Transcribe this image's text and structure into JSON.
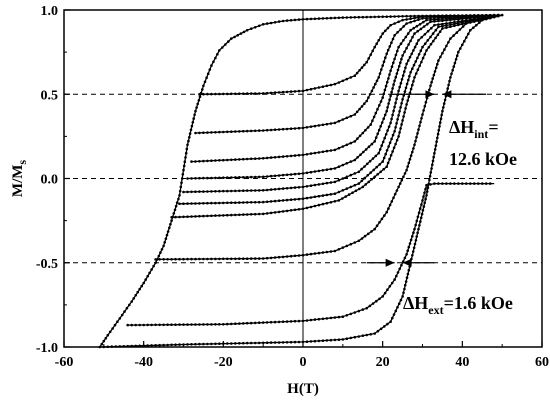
{
  "chart_data": {
    "type": "line",
    "title": "",
    "xlabel": "H(T)",
    "ylabel_main": "M/M",
    "ylabel_sub": "s",
    "xlim": [
      -60,
      60
    ],
    "ylim": [
      -1.0,
      1.0
    ],
    "x_ticks": [
      -60,
      -40,
      -20,
      0,
      20,
      40,
      60
    ],
    "x_tick_labels": [
      "-60",
      "-40",
      "-20",
      "0",
      "20",
      "40",
      "60"
    ],
    "y_ticks": [
      -1.0,
      -0.5,
      0.0,
      0.5,
      1.0
    ],
    "y_tick_labels": [
      "-1.0",
      "-0.5",
      "0.0",
      "0.5",
      "1.0"
    ],
    "grid": false,
    "reference_lines": {
      "horizontal_dashed": [
        -0.5,
        0.0,
        0.5
      ],
      "vertical_solid": [
        0
      ]
    },
    "annotations": {
      "int_main": "ΔH",
      "int_sub": "int",
      "int_tail": "=",
      "int_value": "12.6 kOe",
      "ext_main": "ΔH",
      "ext_sub": "ext",
      "ext_value": "=1.6 kOe"
    },
    "arrows": [
      {
        "y": 0.5,
        "x_from": 46,
        "x_to": 35
      },
      {
        "y": 0.5,
        "x_from": 22,
        "x_to": 33
      },
      {
        "y": -0.5,
        "x_from": 33,
        "x_to": 25
      },
      {
        "y": -0.5,
        "x_from": 16,
        "x_to": 23
      }
    ],
    "series": [
      {
        "points": [
          [
            50,
            0.97
          ],
          [
            30,
            0.965
          ],
          [
            10,
            0.955
          ],
          [
            0,
            0.945
          ],
          [
            -5,
            0.935
          ],
          [
            -10,
            0.915
          ],
          [
            -14,
            0.88
          ],
          [
            -18,
            0.83
          ],
          [
            -21,
            0.76
          ],
          [
            -23,
            0.67
          ],
          [
            -25,
            0.55
          ],
          [
            -27,
            0.4
          ],
          [
            -29,
            0.2
          ],
          [
            -30,
            0.05
          ],
          [
            -31,
            -0.1
          ],
          [
            -33,
            -0.25
          ],
          [
            -35,
            -0.4
          ],
          [
            -37,
            -0.5
          ],
          [
            -40,
            -0.62
          ],
          [
            -43,
            -0.73
          ],
          [
            -46,
            -0.83
          ],
          [
            -49,
            -0.93
          ],
          [
            -51,
            -1.0
          ]
        ]
      },
      {
        "points": [
          [
            -51,
            -1.0
          ],
          [
            -30,
            -0.985
          ],
          [
            -10,
            -0.975
          ],
          [
            0,
            -0.97
          ],
          [
            10,
            -0.955
          ],
          [
            18,
            -0.92
          ],
          [
            22,
            -0.85
          ],
          [
            25,
            -0.7
          ],
          [
            27,
            -0.5
          ],
          [
            29,
            -0.3
          ],
          [
            31,
            -0.1
          ],
          [
            33,
            0.15
          ],
          [
            35,
            0.4
          ],
          [
            37,
            0.6
          ],
          [
            39,
            0.75
          ],
          [
            42,
            0.88
          ],
          [
            45,
            0.94
          ],
          [
            50,
            0.97
          ]
        ]
      },
      {
        "points": [
          [
            -26,
            0.5
          ],
          [
            -10,
            0.505
          ],
          [
            0,
            0.52
          ],
          [
            8,
            0.56
          ],
          [
            13,
            0.61
          ],
          [
            16,
            0.69
          ],
          [
            18,
            0.78
          ],
          [
            20,
            0.86
          ],
          [
            22,
            0.91
          ],
          [
            25,
            0.94
          ],
          [
            30,
            0.96
          ],
          [
            50,
            0.97
          ]
        ]
      },
      {
        "points": [
          [
            -27,
            0.27
          ],
          [
            -10,
            0.285
          ],
          [
            0,
            0.3
          ],
          [
            8,
            0.33
          ],
          [
            13,
            0.38
          ],
          [
            16,
            0.46
          ],
          [
            19,
            0.6
          ],
          [
            21,
            0.74
          ],
          [
            23,
            0.85
          ],
          [
            26,
            0.92
          ],
          [
            30,
            0.95
          ],
          [
            50,
            0.97
          ]
        ]
      },
      {
        "points": [
          [
            -28,
            0.1
          ],
          [
            -10,
            0.12
          ],
          [
            0,
            0.14
          ],
          [
            8,
            0.17
          ],
          [
            13,
            0.22
          ],
          [
            17,
            0.32
          ],
          [
            20,
            0.48
          ],
          [
            22,
            0.64
          ],
          [
            24,
            0.78
          ],
          [
            27,
            0.88
          ],
          [
            31,
            0.94
          ],
          [
            50,
            0.97
          ]
        ]
      },
      {
        "points": [
          [
            -29,
            0.0
          ],
          [
            -10,
            0.01
          ],
          [
            0,
            0.03
          ],
          [
            8,
            0.06
          ],
          [
            13,
            0.11
          ],
          [
            18,
            0.22
          ],
          [
            21,
            0.4
          ],
          [
            23,
            0.58
          ],
          [
            25,
            0.73
          ],
          [
            28,
            0.86
          ],
          [
            32,
            0.93
          ],
          [
            50,
            0.97
          ]
        ]
      },
      {
        "points": [
          [
            -30,
            -0.08
          ],
          [
            -10,
            -0.07
          ],
          [
            0,
            -0.05
          ],
          [
            8,
            -0.02
          ],
          [
            14,
            0.04
          ],
          [
            19,
            0.15
          ],
          [
            22,
            0.33
          ],
          [
            24,
            0.52
          ],
          [
            26,
            0.68
          ],
          [
            29,
            0.82
          ],
          [
            33,
            0.91
          ],
          [
            50,
            0.97
          ]
        ]
      },
      {
        "points": [
          [
            -31,
            -0.15
          ],
          [
            -10,
            -0.14
          ],
          [
            0,
            -0.12
          ],
          [
            8,
            -0.09
          ],
          [
            14,
            -0.03
          ],
          [
            20,
            0.1
          ],
          [
            23,
            0.28
          ],
          [
            25,
            0.47
          ],
          [
            27,
            0.63
          ],
          [
            30,
            0.78
          ],
          [
            34,
            0.9
          ],
          [
            50,
            0.97
          ]
        ]
      },
      {
        "points": [
          [
            -33,
            -0.23
          ],
          [
            -10,
            -0.21
          ],
          [
            0,
            -0.18
          ],
          [
            9,
            -0.13
          ],
          [
            15,
            -0.05
          ],
          [
            21,
            0.07
          ],
          [
            24,
            0.25
          ],
          [
            26,
            0.44
          ],
          [
            28,
            0.6
          ],
          [
            31,
            0.76
          ],
          [
            35,
            0.89
          ],
          [
            50,
            0.97
          ]
        ]
      },
      {
        "points": [
          [
            -37,
            -0.48
          ],
          [
            -10,
            -0.475
          ],
          [
            0,
            -0.455
          ],
          [
            8,
            -0.43
          ],
          [
            14,
            -0.37
          ],
          [
            18,
            -0.3
          ],
          [
            21,
            -0.2
          ],
          [
            24,
            -0.05
          ],
          [
            26,
            0.05
          ],
          [
            28,
            0.2
          ],
          [
            30,
            0.38
          ],
          [
            32,
            0.55
          ],
          [
            34,
            0.7
          ],
          [
            37,
            0.83
          ],
          [
            41,
            0.92
          ],
          [
            50,
            0.97
          ]
        ]
      },
      {
        "points": [
          [
            -44,
            -0.87
          ],
          [
            -20,
            -0.865
          ],
          [
            0,
            -0.845
          ],
          [
            10,
            -0.82
          ],
          [
            16,
            -0.77
          ],
          [
            20,
            -0.7
          ],
          [
            23,
            -0.6
          ],
          [
            26,
            -0.45
          ],
          [
            28,
            -0.3
          ],
          [
            30,
            -0.13
          ],
          [
            31,
            -0.04
          ],
          [
            33,
            -0.03
          ],
          [
            40,
            -0.03
          ],
          [
            48,
            -0.03
          ]
        ]
      }
    ]
  }
}
